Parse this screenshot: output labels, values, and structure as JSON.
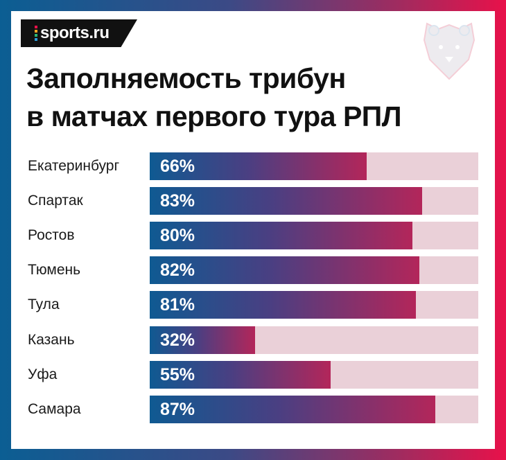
{
  "brand": {
    "logo_text": "sports.ru",
    "logo_dot_colors": [
      "#e8114a",
      "#f5a623",
      "#2bb673",
      "#2d9cdb"
    ],
    "accent_gradient": [
      "#0b5e93",
      "#e8114a"
    ]
  },
  "title_lines": [
    "Заполняемость трибун",
    "в матчах первого тура РПЛ"
  ],
  "chart_data": {
    "type": "bar",
    "orientation": "horizontal",
    "title": "Заполняемость трибун в матчах первого тура РПЛ",
    "categories": [
      "Екатеринбург",
      "Спартак",
      "Ростов",
      "Тюмень",
      "Тула",
      "Казань",
      "Уфа",
      "Самара"
    ],
    "values": [
      66,
      83,
      80,
      82,
      81,
      32,
      55,
      87
    ],
    "value_labels": [
      "66%",
      "83%",
      "80%",
      "82%",
      "81%",
      "32%",
      "55%",
      "87%"
    ],
    "unit": "%",
    "xlim": [
      0,
      100
    ],
    "grid": false,
    "legend": "none",
    "colors": {
      "bar_start": "#0f5a92",
      "bar_end": "#b3265a",
      "track": "#ead0d8"
    }
  }
}
